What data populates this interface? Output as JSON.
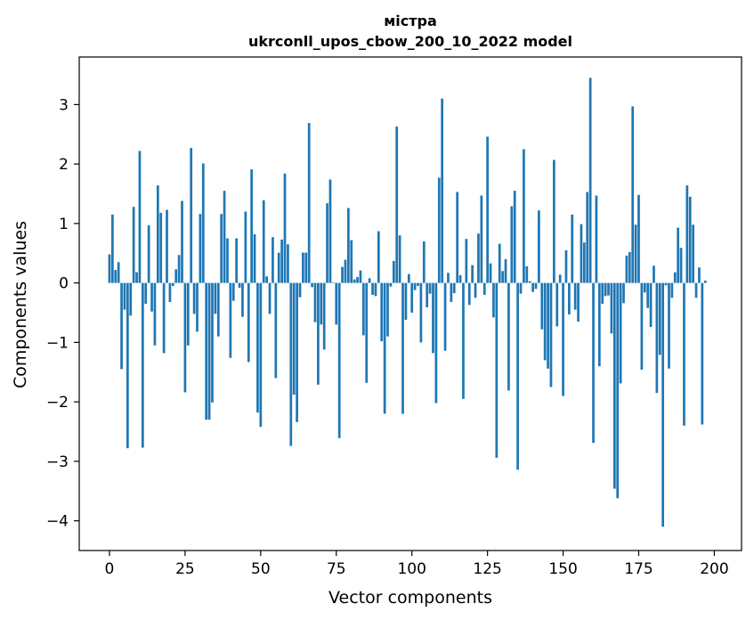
{
  "chart_data": {
    "type": "bar",
    "title": "містра",
    "subtitle": "ukrconll_upos_cbow_200_10_2022 model",
    "xlabel": "Vector components",
    "ylabel": "Components values",
    "xlim": [
      -10,
      209
    ],
    "ylim": [
      -4.5,
      3.8
    ],
    "xticks": [
      0,
      25,
      50,
      75,
      100,
      125,
      150,
      175,
      200
    ],
    "yticks": [
      -4,
      -3,
      -2,
      -1,
      0,
      1,
      2,
      3
    ],
    "grid": false,
    "bar_color": "#1f77b4",
    "values": [
      0.48,
      1.15,
      0.22,
      0.35,
      -1.45,
      -0.45,
      -2.78,
      -0.55,
      1.28,
      0.18,
      2.22,
      -2.77,
      -0.35,
      0.97,
      -0.48,
      -1.05,
      1.64,
      1.18,
      -1.18,
      1.23,
      -0.32,
      -0.05,
      0.23,
      0.47,
      1.38,
      -1.84,
      -1.05,
      2.27,
      -0.52,
      -0.82,
      1.16,
      2.01,
      -2.3,
      -2.3,
      -2.01,
      -0.52,
      -0.9,
      1.16,
      1.55,
      0.75,
      -1.26,
      -0.3,
      0.75,
      -0.08,
      -0.57,
      1.2,
      -1.33,
      1.91,
      0.82,
      -2.18,
      -2.42,
      1.39,
      0.11,
      -0.52,
      0.77,
      -1.6,
      0.51,
      0.73,
      1.84,
      0.65,
      -2.74,
      -1.88,
      -2.34,
      -0.24,
      0.51,
      0.51,
      2.69,
      -0.07,
      -0.66,
      -1.71,
      -0.7,
      -1.12,
      1.34,
      1.74,
      0.01,
      -0.7,
      -2.61,
      0.27,
      0.39,
      1.26,
      0.72,
      0.06,
      0.1,
      0.21,
      -0.88,
      -1.68,
      0.08,
      -0.2,
      -0.22,
      0.87,
      -0.98,
      -2.2,
      -0.9,
      -0.06,
      0.37,
      2.63,
      0.8,
      -2.2,
      -0.62,
      0.15,
      -0.5,
      -0.12,
      -0.05,
      -1.0,
      0.7,
      -0.41,
      -0.18,
      -1.18,
      -2.02,
      1.77,
      3.1,
      -1.14,
      0.17,
      -0.32,
      -0.17,
      1.53,
      0.13,
      -1.95,
      0.74,
      -0.37,
      0.3,
      -0.25,
      0.83,
      1.47,
      -0.2,
      2.46,
      0.33,
      -0.58,
      -2.94,
      0.66,
      0.2,
      0.4,
      -1.81,
      1.29,
      1.55,
      -3.14,
      -0.18,
      2.25,
      0.28,
      0.03,
      -0.15,
      -0.1,
      1.22,
      -0.78,
      -1.3,
      -1.44,
      -1.75,
      2.07,
      -0.73,
      0.14,
      -1.9,
      0.55,
      -0.53,
      1.15,
      -0.45,
      -0.65,
      0.99,
      0.68,
      1.53,
      3.45,
      -2.69,
      1.47,
      -1.4,
      -0.35,
      -0.22,
      -0.21,
      -0.85,
      -3.46,
      -3.62,
      -1.69,
      -0.34,
      0.46,
      0.52,
      2.97,
      0.98,
      1.48,
      -1.46,
      -0.16,
      -0.42,
      -0.74,
      0.29,
      -1.85,
      -1.21,
      -4.1,
      -0.04,
      -1.44,
      -0.25,
      0.18,
      0.93,
      0.59,
      -2.4,
      1.64,
      1.45,
      0.98,
      -0.25,
      0.26,
      -2.38,
      0.04
    ]
  }
}
